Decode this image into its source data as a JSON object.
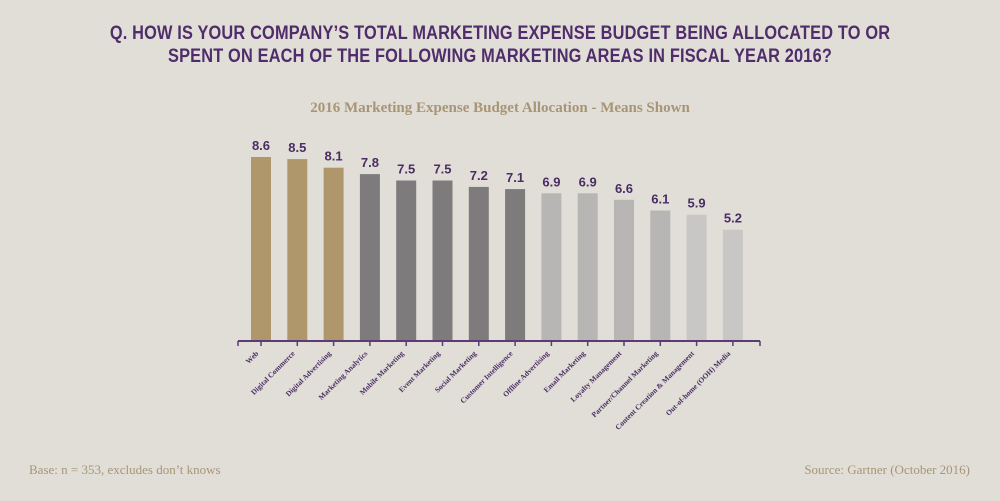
{
  "header": {
    "question_line1": "Q. HOW IS YOUR COMPANY’S TOTAL MARKETING EXPENSE BUDGET BEING ALLOCATED TO OR",
    "question_line2": "SPENT ON EACH OF THE FOLLOWING MARKETING AREAS IN FISCAL YEAR 2016?"
  },
  "footer": {
    "base_note": "Base: n = 353, excludes don’t knows",
    "source": "Source: Gartner (October 2016)"
  },
  "colors": {
    "question": "#4f2c6a",
    "subtitle": "#a89575",
    "axis": "#5b3a78",
    "value_label": "#4a2d63",
    "gold": "#b0976b",
    "dark_gray": "#7d7b7c",
    "light_gray": "#b7b6b5",
    "lighter_gray": "#c8c7c5"
  },
  "chart_data": {
    "type": "bar",
    "title": "2016 Marketing Expense Budget Allocation - Means Shown",
    "xlabel": "",
    "ylabel": "",
    "ylim": [
      0,
      9
    ],
    "grid": false,
    "categories": [
      "Web",
      "Digital Commerce",
      "Digital Advertising",
      "Marketing Analytics",
      "Mobile Marketing",
      "Event Marketing",
      "Social Marketing",
      "Customer Intelligence",
      "Offline Advertising",
      "Email Marketing",
      "Loyalty Management",
      "Partner/Channel Marketing",
      "Content Creation & Management",
      "Out-of-home (OOH) Media"
    ],
    "values": [
      8.6,
      8.5,
      8.1,
      7.8,
      7.5,
      7.5,
      7.2,
      7.1,
      6.9,
      6.9,
      6.6,
      6.1,
      5.9,
      5.2
    ],
    "value_labels": [
      "8.6",
      "8.5",
      "8.1",
      "7.8",
      "7.5",
      "7.5",
      "7.2",
      "7.1",
      "6.9",
      "6.9",
      "6.6",
      "6.1",
      "5.9",
      "5.2"
    ],
    "bar_color_groups": [
      "gold",
      "gold",
      "gold",
      "dark_gray",
      "dark_gray",
      "dark_gray",
      "dark_gray",
      "dark_gray",
      "light_gray",
      "light_gray",
      "light_gray",
      "light_gray",
      "lighter_gray",
      "lighter_gray"
    ]
  }
}
